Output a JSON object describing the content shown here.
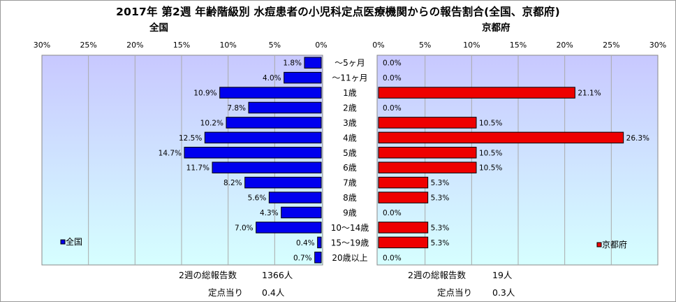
{
  "title": "2017年 第2週 年齢階級別 水痘患者の小児科定点医療機関からの報告割合(全国、京都府)",
  "colors": {
    "national_bar": "#0000ee",
    "kyoto_bar": "#ee0000",
    "plot_bg_top": "#c8c8ff",
    "plot_bg_bottom": "#d6ffff",
    "gridline": "#aaaaaa"
  },
  "chart_data": [
    {
      "type": "bar",
      "orientation": "horizontal",
      "direction": "right-to-left",
      "title": "全国",
      "categories": [
        "～5ヶ月",
        "～11ヶ月",
        "1歳",
        "2歳",
        "3歳",
        "4歳",
        "5歳",
        "6歳",
        "7歳",
        "8歳",
        "9歳",
        "10～14歳",
        "15～19歳",
        "20歳以上"
      ],
      "series": [
        {
          "name": "全国",
          "values": [
            1.8,
            4.0,
            10.9,
            7.8,
            10.2,
            12.5,
            14.7,
            11.7,
            8.2,
            5.6,
            4.3,
            7.0,
            0.4,
            0.7
          ],
          "labels": [
            "1.8%",
            "4.0%",
            "10.9%",
            "7.8%",
            "10.2%",
            "12.5%",
            "14.7%",
            "11.7%",
            "8.2%",
            "5.6%",
            "4.3%",
            "7.0%",
            "0.4%",
            "0.7%"
          ]
        }
      ],
      "xlim": [
        0,
        30
      ],
      "ticks": [
        "30%",
        "25%",
        "20%",
        "15%",
        "10%",
        "5%",
        "0%"
      ],
      "grid": true,
      "legend": "bottom-left",
      "footer": {
        "reports_label": "2週の総報告数",
        "reports_value": "1366人",
        "per_site_label": "定点当り",
        "per_site_value": "0.4人"
      }
    },
    {
      "type": "bar",
      "orientation": "horizontal",
      "direction": "left-to-right",
      "title": "京都府",
      "categories": [
        "～5ヶ月",
        "～11ヶ月",
        "1歳",
        "2歳",
        "3歳",
        "4歳",
        "5歳",
        "6歳",
        "7歳",
        "8歳",
        "9歳",
        "10～14歳",
        "15～19歳",
        "20歳以上"
      ],
      "series": [
        {
          "name": "京都府",
          "values": [
            0.0,
            0.0,
            21.1,
            0.0,
            10.5,
            26.3,
            10.5,
            10.5,
            5.3,
            5.3,
            0.0,
            5.3,
            5.3,
            0.0
          ],
          "labels": [
            "0.0%",
            "0.0%",
            "21.1%",
            "0.0%",
            "10.5%",
            "26.3%",
            "10.5%",
            "10.5%",
            "5.3%",
            "5.3%",
            "0.0%",
            "5.3%",
            "5.3%",
            "0.0%"
          ]
        }
      ],
      "xlim": [
        0,
        30
      ],
      "ticks": [
        "0%",
        "5%",
        "10%",
        "15%",
        "20%",
        "25%",
        "30%"
      ],
      "grid": true,
      "legend": "bottom-right",
      "footer": {
        "reports_label": "2週の総報告数",
        "reports_value": "19人",
        "per_site_label": "定点当り",
        "per_site_value": "0.3人"
      }
    }
  ]
}
